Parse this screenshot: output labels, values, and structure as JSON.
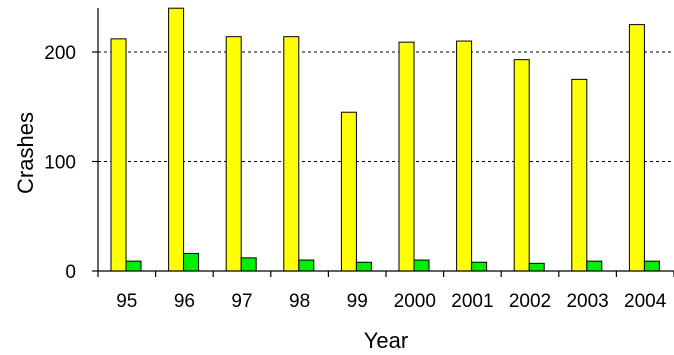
{
  "chart_data": {
    "type": "bar",
    "title": "",
    "xlabel": "Year",
    "ylabel": "Crashes",
    "categories": [
      "95",
      "96",
      "97",
      "98",
      "99",
      "2000",
      "2001",
      "2002",
      "2003",
      "2004"
    ],
    "series": [
      {
        "color": "#ffff00",
        "values": [
          212,
          240,
          214,
          214,
          145,
          209,
          210,
          193,
          175,
          225
        ]
      },
      {
        "color": "#00ee00",
        "values": [
          9,
          16,
          12,
          10,
          8,
          10,
          8,
          7,
          9,
          9
        ]
      }
    ],
    "ylim": [
      0,
      240
    ],
    "yticks": [
      0,
      100,
      200
    ],
    "grid": "horizontal dotted at y ticks",
    "legend": "none"
  }
}
